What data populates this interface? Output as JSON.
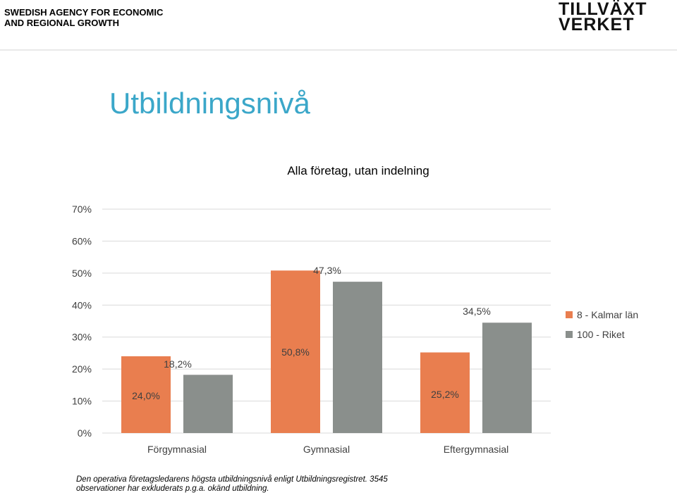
{
  "header": {
    "agency": "SWEDISH AGENCY FOR ECONOMIC\nAND REGIONAL GROWTH",
    "logo_line1": "TILLVÄXT",
    "logo_line2": "VERKET"
  },
  "page_title": "Utbildningsnivå",
  "note": "Den operativa företagsledarens högsta utbildningsnivå enligt Utbildningsregistret. 3545\nobservationer har exkluderats p.g.a. okänd utbildning.",
  "colors": {
    "series1": "#e97e4f",
    "series2": "#8a8f8c",
    "title": "#3ba7c9",
    "grid": "#d9d9d9"
  },
  "chart_data": {
    "type": "bar",
    "title": "Alla företag, utan indelning",
    "categories": [
      "Förgymnasial",
      "Gymnasial",
      "Eftergymnasial"
    ],
    "series": [
      {
        "name": "8 - Kalmar län",
        "values": [
          24.0,
          50.8,
          25.2
        ],
        "labels": [
          "24,0%",
          "50,8%",
          "25,2%"
        ],
        "color": "#e97e4f"
      },
      {
        "name": "100 - Riket",
        "values": [
          18.2,
          47.3,
          34.5
        ],
        "labels": [
          "18,2%",
          "47,3%",
          "34,5%"
        ],
        "color": "#8a8f8c"
      }
    ],
    "ylim": [
      0,
      70
    ],
    "yticks": [
      0,
      10,
      20,
      30,
      40,
      50,
      60,
      70
    ],
    "ytick_labels": [
      "0%",
      "10%",
      "20%",
      "30%",
      "40%",
      "50%",
      "60%",
      "70%"
    ],
    "grid": true,
    "legend": "right"
  }
}
